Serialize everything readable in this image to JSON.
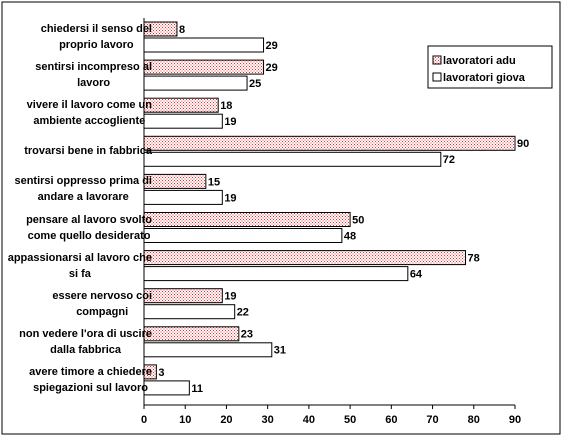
{
  "chart_data": {
    "type": "hbar",
    "categories": [
      "chiedersi il senso del\nproprio lavoro",
      "sentirsi incompreso al\nlavoro",
      "vivere il lavoro come un\nambiente accogliente",
      "trovarsi bene in fabbrica",
      "sentirsi oppresso prima di\nandare a lavorare",
      "pensare al lavoro svolto\ncome quello desiderato",
      "appassionarsi al lavoro che\nsi fa",
      "essere nervoso coi\ncompagni",
      "non vedere l'ora di uscire\ndalla fabbrica",
      "avere timore a chiedere\nspiegazioni sul lavoro"
    ],
    "series": [
      {
        "name": "lavoratori adu",
        "color": "#e03030",
        "pattern": "dotted",
        "values": [
          8,
          29,
          18,
          90,
          15,
          50,
          78,
          19,
          23,
          3
        ]
      },
      {
        "name": "lavoratori giova",
        "color": "#ffffff",
        "values": [
          29,
          25,
          19,
          72,
          19,
          48,
          64,
          22,
          31,
          11
        ]
      }
    ],
    "xlim": [
      0,
      90
    ],
    "xticks": [
      0,
      10,
      20,
      30,
      40,
      50,
      60,
      70,
      80,
      90
    ],
    "grid": false,
    "legend": "upper right"
  }
}
